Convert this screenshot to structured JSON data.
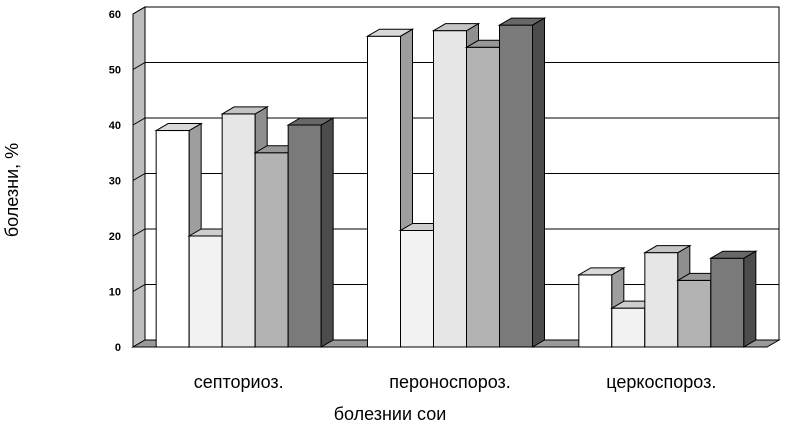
{
  "chart_data": {
    "type": "bar",
    "three_d": true,
    "xlabel": "болезнии сои",
    "ylabel": "болезни, %",
    "ylim": [
      0,
      60
    ],
    "yticks": [
      0,
      10,
      20,
      30,
      40,
      50,
      60
    ],
    "grid": true,
    "legend": "none",
    "categories": [
      "септориоз.",
      "пероноспороз.",
      "церкоспороз."
    ],
    "series": [
      {
        "values": [
          39,
          56,
          13
        ],
        "color": "#ffffff"
      },
      {
        "values": [
          20,
          21,
          7
        ],
        "color": "#f2f2f2"
      },
      {
        "values": [
          42,
          57,
          17
        ],
        "color": "#e6e6e6"
      },
      {
        "values": [
          35,
          54,
          12
        ],
        "color": "#b3b3b3"
      },
      {
        "values": [
          40,
          58,
          16
        ],
        "color": "#7a7a7a"
      }
    ]
  }
}
